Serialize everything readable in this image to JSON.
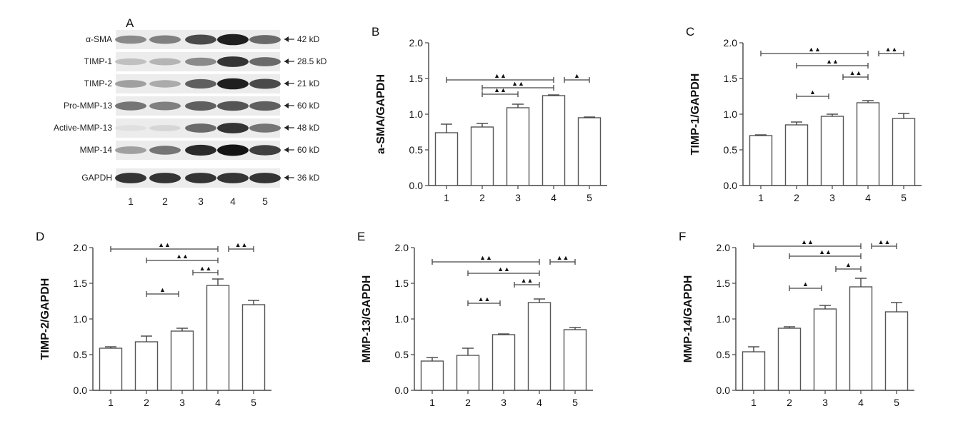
{
  "blot": {
    "letter": "A",
    "rows": [
      {
        "label": "α-SMA",
        "kd": "42 kD",
        "intensity": [
          0.45,
          0.5,
          0.75,
          0.95,
          0.6
        ]
      },
      {
        "label": "TIMP-1",
        "kd": "28.5 kD",
        "intensity": [
          0.2,
          0.25,
          0.45,
          0.85,
          0.6
        ]
      },
      {
        "label": "TIMP-2",
        "kd": "21 kD",
        "intensity": [
          0.35,
          0.3,
          0.65,
          0.95,
          0.75
        ]
      },
      {
        "label": "Pro-MMP-13",
        "kd": "60 kD",
        "intensity": [
          0.55,
          0.5,
          0.65,
          0.7,
          0.65
        ]
      },
      {
        "label": "Active-MMP-13",
        "kd": "48 kD",
        "intensity": [
          0.05,
          0.1,
          0.6,
          0.85,
          0.55
        ]
      },
      {
        "label": "MMP-14",
        "kd": "60 kD",
        "intensity": [
          0.35,
          0.55,
          0.9,
          1.0,
          0.8
        ]
      },
      {
        "label": "GAPDH",
        "kd": "36 kD",
        "intensity": [
          0.85,
          0.85,
          0.85,
          0.85,
          0.85
        ]
      }
    ],
    "lanes": [
      "1",
      "2",
      "3",
      "4",
      "5"
    ]
  },
  "chart_data": [
    {
      "letter": "B",
      "type": "bar",
      "ylabel": "a-SMA/GAPDH",
      "categories": [
        "1",
        "2",
        "3",
        "4",
        "5"
      ],
      "values": [
        0.74,
        0.82,
        1.09,
        1.26,
        0.95
      ],
      "errors": [
        0.12,
        0.05,
        0.05,
        0.01,
        0.01
      ],
      "ylim": [
        0,
        2.0
      ],
      "yticks": [
        "0.0",
        "0.5",
        "1.0",
        "1.5",
        "2.0"
      ],
      "brackets": [
        {
          "from": 1,
          "to": 4,
          "y": 1.48,
          "mark": "▲▲"
        },
        {
          "from": 2,
          "to": 4,
          "y": 1.37,
          "mark": "▲▲"
        },
        {
          "from": 2,
          "to": 3,
          "y": 1.28,
          "mark": "▲▲"
        },
        {
          "from": 4.3,
          "to": 5,
          "y": 1.48,
          "mark": "▲"
        }
      ]
    },
    {
      "letter": "C",
      "type": "bar",
      "ylabel": "TIMP-1/GAPDH",
      "categories": [
        "1",
        "2",
        "3",
        "4",
        "5"
      ],
      "values": [
        0.7,
        0.85,
        0.97,
        1.16,
        0.94
      ],
      "errors": [
        0.01,
        0.04,
        0.03,
        0.03,
        0.07
      ],
      "ylim": [
        0,
        2.0
      ],
      "yticks": [
        "0.0",
        "0.5",
        "1.0",
        "1.5",
        "2.0"
      ],
      "brackets": [
        {
          "from": 1,
          "to": 4,
          "y": 1.85,
          "mark": "▲▲"
        },
        {
          "from": 2,
          "to": 4,
          "y": 1.68,
          "mark": "▲▲"
        },
        {
          "from": 3.3,
          "to": 4,
          "y": 1.52,
          "mark": "▲▲"
        },
        {
          "from": 2,
          "to": 2.9,
          "y": 1.25,
          "mark": "▲"
        },
        {
          "from": 4.3,
          "to": 5,
          "y": 1.85,
          "mark": "▲▲"
        }
      ]
    },
    {
      "letter": "D",
      "type": "bar",
      "ylabel": "TIMP-2/GAPDH",
      "categories": [
        "1",
        "2",
        "3",
        "4",
        "5"
      ],
      "values": [
        0.59,
        0.68,
        0.83,
        1.47,
        1.2
      ],
      "errors": [
        0.02,
        0.08,
        0.04,
        0.09,
        0.06
      ],
      "ylim": [
        0,
        2.0
      ],
      "yticks": [
        "0.0",
        "0.5",
        "1.0",
        "1.5",
        "2.0"
      ],
      "brackets": [
        {
          "from": 1,
          "to": 4,
          "y": 1.98,
          "mark": "▲▲"
        },
        {
          "from": 2,
          "to": 4,
          "y": 1.82,
          "mark": "▲▲"
        },
        {
          "from": 3.3,
          "to": 4,
          "y": 1.65,
          "mark": "▲▲"
        },
        {
          "from": 2,
          "to": 2.9,
          "y": 1.35,
          "mark": "▲"
        },
        {
          "from": 4.3,
          "to": 5,
          "y": 1.98,
          "mark": "▲▲"
        }
      ]
    },
    {
      "letter": "E",
      "type": "bar",
      "ylabel": "MMP-13/GAPDH",
      "categories": [
        "1",
        "2",
        "3",
        "4",
        "5"
      ],
      "values": [
        0.41,
        0.49,
        0.78,
        1.23,
        0.85
      ],
      "errors": [
        0.05,
        0.1,
        0.01,
        0.05,
        0.03
      ],
      "ylim": [
        0,
        2.0
      ],
      "yticks": [
        "0.0",
        "0.5",
        "1.0",
        "1.5",
        "2.0"
      ],
      "brackets": [
        {
          "from": 1,
          "to": 4,
          "y": 1.8,
          "mark": "▲▲"
        },
        {
          "from": 2,
          "to": 4,
          "y": 1.64,
          "mark": "▲▲"
        },
        {
          "from": 3.3,
          "to": 4,
          "y": 1.48,
          "mark": "▲▲"
        },
        {
          "from": 2,
          "to": 2.9,
          "y": 1.22,
          "mark": "▲▲"
        },
        {
          "from": 4.3,
          "to": 5,
          "y": 1.8,
          "mark": "▲▲"
        }
      ]
    },
    {
      "letter": "F",
      "type": "bar",
      "ylabel": "MMP-14/GAPDH",
      "categories": [
        "1",
        "2",
        "3",
        "4",
        "5"
      ],
      "values": [
        0.54,
        0.87,
        1.14,
        1.45,
        1.1
      ],
      "errors": [
        0.07,
        0.02,
        0.05,
        0.12,
        0.13
      ],
      "ylim": [
        0,
        2.0
      ],
      "yticks": [
        "0.0",
        "0.5",
        "1.0",
        "1.5",
        "2.0"
      ],
      "brackets": [
        {
          "from": 1,
          "to": 4,
          "y": 2.02,
          "mark": "▲▲"
        },
        {
          "from": 2,
          "to": 4,
          "y": 1.88,
          "mark": "▲▲"
        },
        {
          "from": 3.3,
          "to": 4,
          "y": 1.7,
          "mark": "▲"
        },
        {
          "from": 2,
          "to": 2.9,
          "y": 1.43,
          "mark": "▲"
        },
        {
          "from": 4.3,
          "to": 5,
          "y": 2.02,
          "mark": "▲▲"
        }
      ]
    }
  ]
}
